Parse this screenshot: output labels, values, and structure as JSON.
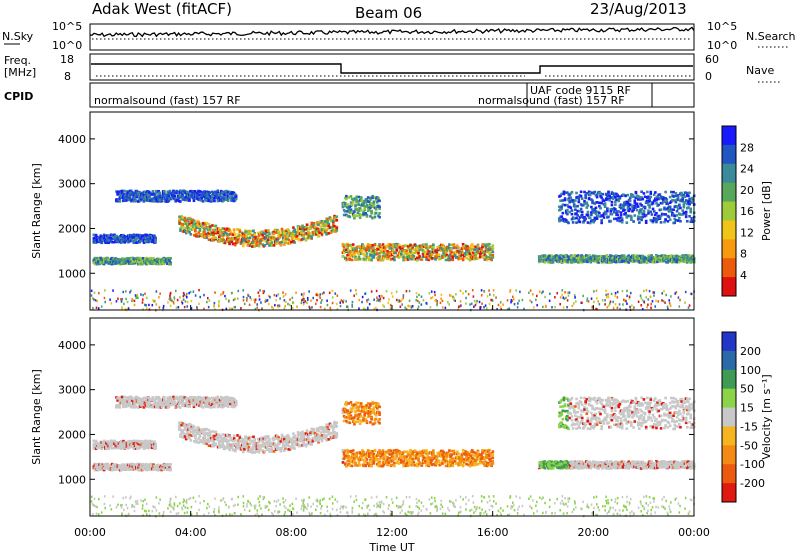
{
  "header": {
    "title_left": "Adak West (fitACF)",
    "title_center": "Beam 06",
    "title_right": "23/Aug/2013"
  },
  "top_panels": {
    "nsky_label": "N.Sky",
    "nsearch_label": "N.Search",
    "nsky_ticks": [
      "10^5",
      "10^0"
    ],
    "freq_label_1": "Freq.",
    "freq_label_2": "[MHz]",
    "freq_ticks": [
      "18",
      "8"
    ],
    "nave_label": "Nave",
    "nave_ticks": [
      "60",
      "0"
    ],
    "cpid_label": "CPID",
    "cpid_segments": [
      {
        "start_hour": 0,
        "text": "normalsound (fast) 157 RF"
      },
      {
        "start_hour": 17.5,
        "text": "normalsound (fast) 157 RF"
      },
      {
        "start_hour": 17.7,
        "text": "UAF code 9115 RF"
      }
    ]
  },
  "chart_data": [
    {
      "type": "heatmap",
      "name": "power-panel",
      "xlabel": "",
      "ylabel": "Slant Range [km]",
      "ylim": [
        180,
        4600
      ],
      "yticks": [
        1000,
        2000,
        3000,
        4000
      ],
      "colorbar": {
        "label": "Power [dB]",
        "ticks": [
          "4",
          "8",
          "12",
          "16",
          "20",
          "24",
          "28"
        ],
        "colors": [
          "#1a1aff",
          "#2155c2",
          "#3a8a9a",
          "#57a85c",
          "#9ecb3a",
          "#f0c418",
          "#f79a10",
          "#ee5a0c",
          "#e01010"
        ]
      }
    },
    {
      "type": "heatmap",
      "name": "velocity-panel",
      "xlabel": "Time UT",
      "ylabel": "Slant Range [km]",
      "ylim": [
        180,
        4600
      ],
      "yticks": [
        1000,
        2000,
        3000,
        4000
      ],
      "xticks": [
        "00:00",
        "04:00",
        "08:00",
        "12:00",
        "16:00",
        "20:00",
        "00:00"
      ],
      "colorbar": {
        "label": "Velocity [m s⁻¹]",
        "ticks": [
          "200",
          "100",
          "50",
          "15",
          "-15",
          "-50",
          "-100",
          "-200"
        ],
        "colors": [
          "#2236c8",
          "#2a6aa8",
          "#3f9a54",
          "#8cd34a",
          "#c8c8c8",
          "#f4b520",
          "#f48a14",
          "#ec5a10",
          "#e01a10"
        ]
      }
    }
  ]
}
